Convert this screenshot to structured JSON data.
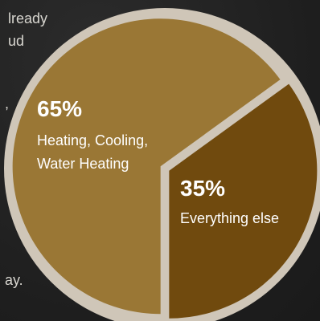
{
  "side_text": {
    "line1": "lready",
    "line2": "ud",
    "line3": ",",
    "line4": "ay."
  },
  "chart_data": {
    "type": "pie",
    "slices": [
      {
        "percent_label": "65%",
        "label_lines": [
          "Heating, Cooling,",
          "Water Heating"
        ],
        "value": 65,
        "color": "#9a7735"
      },
      {
        "percent_label": "35%",
        "label_lines": [
          "Everything else"
        ],
        "value": 35,
        "color": "#704a0e"
      }
    ],
    "border_color": "#cfc6b8"
  }
}
